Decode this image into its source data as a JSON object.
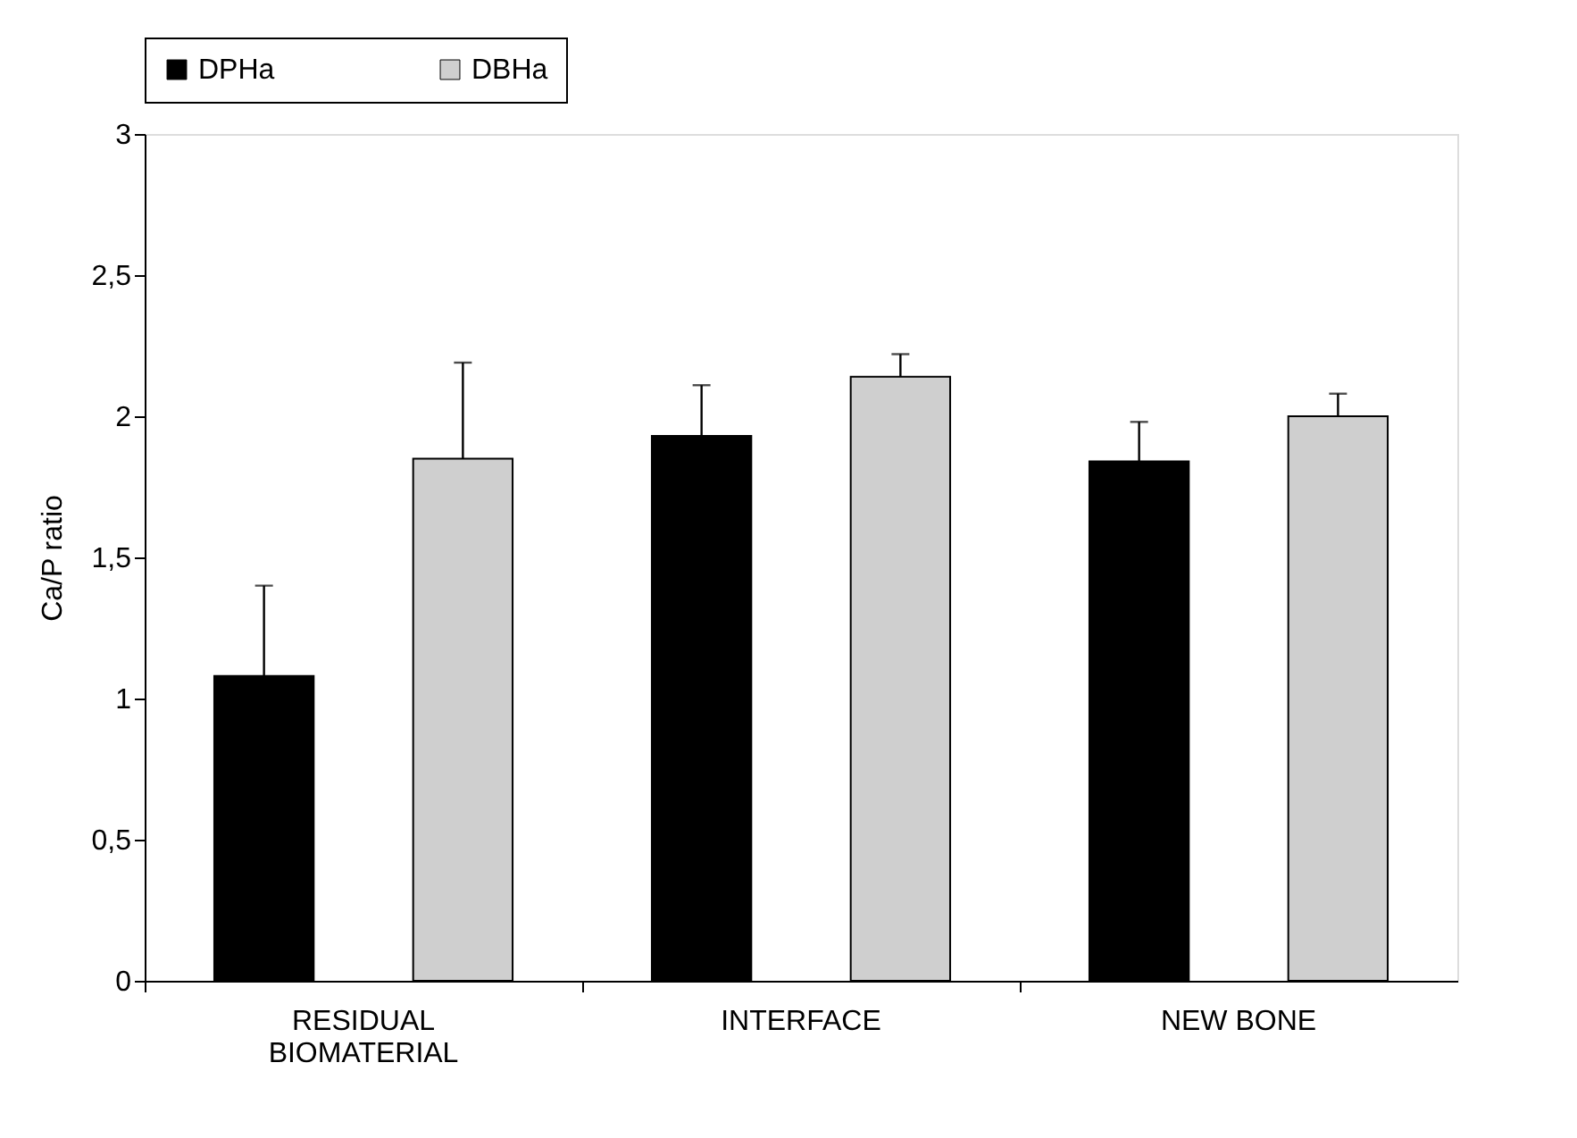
{
  "chart_data": {
    "type": "bar",
    "ylabel": "Ca/P ratio",
    "categories": [
      "RESIDUAL\nBIOMATERIAL",
      "INTERFACE",
      "NEW BONE"
    ],
    "series": [
      {
        "name": "DPHa",
        "color": "#000000",
        "values": [
          1.08,
          1.93,
          1.84
        ],
        "errors": [
          0.32,
          0.18,
          0.14
        ]
      },
      {
        "name": "DBHa",
        "color": "#cfcfcf",
        "values": [
          1.85,
          2.14,
          2.0
        ],
        "errors": [
          0.34,
          0.08,
          0.08
        ]
      }
    ],
    "ylim": [
      0,
      3
    ],
    "yticks": [
      0,
      {
        "value": 0.5,
        "label": "0,5"
      },
      1,
      {
        "value": 1.5,
        "label": "1,5"
      },
      2,
      {
        "value": 2.5,
        "label": "2,5"
      },
      3
    ],
    "legend": "top",
    "grid": false
  }
}
